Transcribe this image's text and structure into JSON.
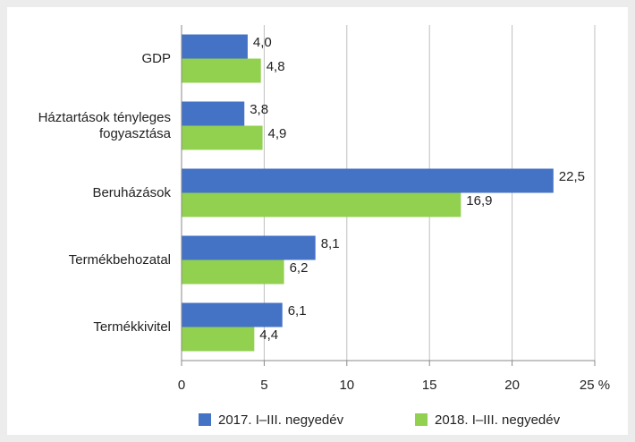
{
  "chart_data": {
    "type": "hbar",
    "categories": [
      "GDP",
      "Háztartások tényleges fogyasztása",
      "Beruházások",
      "Termékbehozatal",
      "Termékkivitel"
    ],
    "series": [
      {
        "name": "2017. I–III. negyedév",
        "color": "#4472c4",
        "values": [
          4.0,
          3.8,
          22.5,
          8.1,
          6.1
        ],
        "value_labels": [
          "4,0",
          "3,8",
          "22,5",
          "8,1",
          "6,1"
        ]
      },
      {
        "name": "2018. I–III. negyedév",
        "color": "#92d050",
        "values": [
          4.8,
          4.9,
          16.9,
          6.2,
          4.4
        ],
        "value_labels": [
          "4,8",
          "4,9",
          "16,9",
          "6,2",
          "4,4"
        ]
      }
    ],
    "xlim": [
      0,
      25
    ],
    "xticks": [
      0,
      5,
      10,
      15,
      20,
      {
        "value": 25,
        "label": "25 %"
      }
    ],
    "grid": true,
    "legend": "bottom"
  }
}
